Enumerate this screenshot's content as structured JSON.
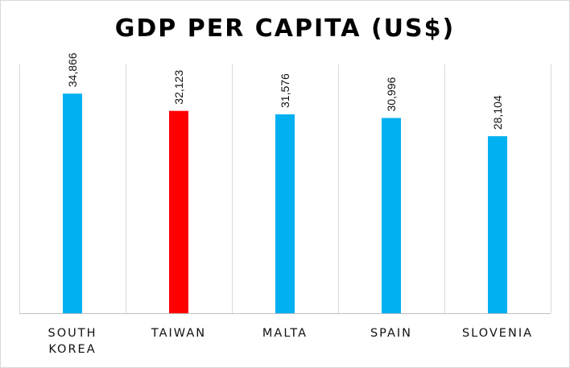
{
  "chart_data": {
    "type": "bar",
    "title": "GDP PER CAPITA (US$)",
    "categories": [
      [
        "SOUTH",
        "KOREA"
      ],
      [
        "TAIWAN"
      ],
      [
        "MALTA"
      ],
      [
        "SPAIN"
      ],
      [
        "SLOVENIA"
      ]
    ],
    "values": [
      34866,
      32123,
      31576,
      30996,
      28104
    ],
    "value_labels": [
      "34,866",
      "32,123",
      "31,576",
      "30,996",
      "28,104"
    ],
    "bar_colors": [
      "#00B0F0",
      "#FF0000",
      "#00B0F0",
      "#00B0F0",
      "#00B0F0"
    ],
    "xlabel": "",
    "ylabel": "",
    "ylim": [
      0,
      39500
    ],
    "grid": "vertical category separators",
    "legend": "none"
  }
}
